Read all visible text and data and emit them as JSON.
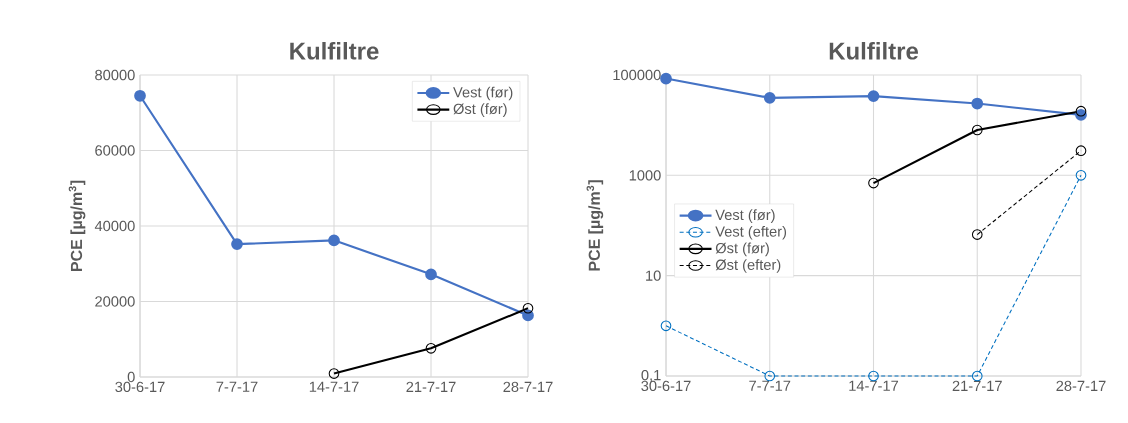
{
  "chart_data": [
    {
      "type": "line",
      "title": "Kulfiltre",
      "ylabel": "PCE [µg/m$^{3}$]",
      "categories": [
        "30-6-17",
        "7-7-17",
        "14-7-17",
        "21-7-17",
        "28-7-17"
      ],
      "ylim": [
        0,
        80000
      ],
      "yticks": [
        0,
        20000,
        40000,
        60000,
        80000
      ],
      "grid": true,
      "legend": "top right",
      "marker": "circle",
      "series": [
        {
          "name": "Vest (før)",
          "color": "#4472c4",
          "line_style": "solid",
          "values": [
            74500,
            35200,
            36200,
            27200,
            16300
          ]
        },
        {
          "name": "Øst (før)",
          "color": "#000000",
          "line_style": "solid",
          "values": [
            null,
            null,
            900,
            7600,
            18200
          ]
        }
      ]
    },
    {
      "type": "line",
      "title": "Kulfiltre",
      "ylabel": "PCE [µg/m$^{3}$]",
      "categories": [
        "30-6-17",
        "7-7-17",
        "14-7-17",
        "21-7-17",
        "28-7-17"
      ],
      "log": true,
      "ylim": [
        0.1,
        100000
      ],
      "yticks": [
        {
          "value": 0.1,
          "label": "0,1"
        },
        10,
        1000,
        100000
      ],
      "grid": true,
      "legend": "left",
      "marker": "circle",
      "series": [
        {
          "name": "Vest (før)",
          "color": "#4472c4",
          "line_style": "solid",
          "values": [
            85000,
            35000,
            38000,
            27000,
            16000
          ]
        },
        {
          "name": "Vest (efter)",
          "color": "#0070c0",
          "line_style": "dashed",
          "values": [
            1,
            0.1,
            0.1,
            0.1,
            1000
          ]
        },
        {
          "name": "Øst (før)",
          "color": "#000000",
          "line_style": "solid",
          "values": [
            null,
            null,
            700,
            8000,
            19000
          ]
        },
        {
          "name": "Øst (efter)",
          "color": "#000000",
          "line_style": "dashed",
          "values": [
            null,
            null,
            null,
            66,
            3100
          ]
        }
      ]
    }
  ]
}
